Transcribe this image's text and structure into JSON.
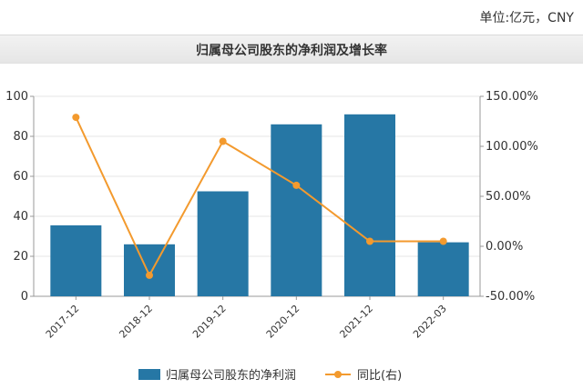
{
  "unit_label": "单位:亿元，CNY",
  "colors": {
    "bar": "#2677a5",
    "line": "#f39a2e",
    "grid": "#e6e6e6",
    "axis": "#999999"
  },
  "chart_data": {
    "type": "bar",
    "title": "归属母公司股东的净利润及增长率",
    "categories": [
      "2017-12",
      "2018-12",
      "2019-12",
      "2020-12",
      "2021-12",
      "2022-03"
    ],
    "series": [
      {
        "name": "归属母公司股东的净利润",
        "type": "bar",
        "axis": "left",
        "values": [
          35.5,
          26.0,
          52.5,
          86.0,
          91.0,
          27.0
        ]
      },
      {
        "name": "同比(右)",
        "type": "line",
        "axis": "right",
        "values": [
          129.0,
          -29.0,
          105.0,
          61.0,
          5.0,
          5.0
        ]
      }
    ],
    "ylim_left": [
      0,
      100
    ],
    "yticks_left": [
      "0",
      "20",
      "40",
      "60",
      "80",
      "100"
    ],
    "ylim_right": [
      -50,
      150
    ],
    "yticks_right": [
      "-50.00%",
      "0.00%",
      "50.00%",
      "100.00%",
      "150.00%"
    ],
    "grid": true,
    "legend": "bottom"
  }
}
